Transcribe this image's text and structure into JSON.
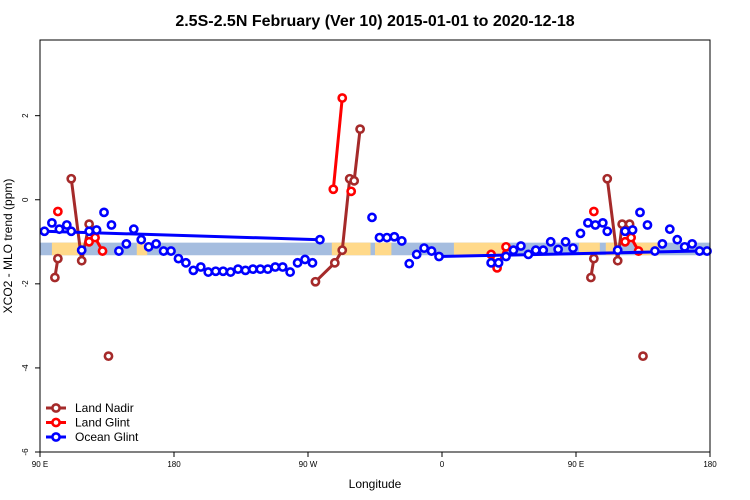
{
  "chart_data": {
    "type": "line",
    "title": "2.5S-2.5N February (Ver 10)   2015-01-01 to 2020-12-18",
    "xlabel": "Longitude",
    "ylabel": "XCO2 - MLO trend (ppm)",
    "xlim": [
      0,
      450
    ],
    "ylim": [
      -6,
      3.8
    ],
    "x_ticks": [
      {
        "value": 0,
        "label": "90 E"
      },
      {
        "value": 90,
        "label": "180"
      },
      {
        "value": 180,
        "label": "90 W"
      },
      {
        "value": 270,
        "label": "0"
      },
      {
        "value": 360,
        "label": "90 E"
      },
      {
        "value": 450,
        "label": "180"
      }
    ],
    "y_ticks": [
      {
        "value": -6,
        "label": "-6"
      },
      {
        "value": -4,
        "label": "-4"
      },
      {
        "value": -2,
        "label": "-2"
      },
      {
        "value": 0,
        "label": "0"
      },
      {
        "value": 2,
        "label": "2"
      }
    ],
    "colors": {
      "land_nadir": "#a52a2a",
      "land_glint": "#ff0000",
      "ocean_glint": "#0000ff",
      "band_ocean": "#a5bddf",
      "band_land": "#ffd98a"
    },
    "background_band": {
      "y_range": [
        -1.32,
        -1.02
      ],
      "land_segments": [
        [
          8,
          30
        ],
        [
          65,
          72
        ],
        [
          196,
          222
        ],
        [
          225,
          236
        ],
        [
          278,
          312
        ],
        [
          362,
          376
        ],
        [
          380,
          388
        ],
        [
          400,
          416
        ]
      ]
    },
    "series": [
      {
        "name": "Land Nadir",
        "color": "#a52a2a",
        "x": [
          10,
          12,
          21,
          28,
          33,
          46,
          185,
          198,
          203,
          208,
          211,
          215,
          370,
          372,
          381,
          388,
          391,
          396,
          405
        ],
        "y": [
          -1.85,
          -1.4,
          0.5,
          -1.45,
          -0.58,
          -3.72,
          -1.95,
          -1.5,
          -1.2,
          0.5,
          0.45,
          1.68,
          -1.85,
          -1.4,
          0.5,
          -1.45,
          -0.58,
          -0.58,
          -3.72
        ],
        "segments": [
          [
            0,
            1
          ],
          [
            2,
            3,
            4
          ],
          [
            6,
            7,
            8,
            9,
            10,
            11
          ],
          [
            12,
            13
          ],
          [
            14,
            15,
            16
          ]
        ]
      },
      {
        "name": "Land Glint",
        "color": "#ff0000",
        "x": [
          12,
          33,
          37,
          42,
          197,
          203,
          209,
          303,
          307,
          313,
          372,
          393,
          397,
          402
        ],
        "y": [
          -0.28,
          -1.0,
          -0.9,
          -1.22,
          0.25,
          2.42,
          0.2,
          -1.3,
          -1.62,
          -1.12,
          -0.28,
          -1.0,
          -0.9,
          -1.22
        ],
        "segments": [
          [
            1,
            2,
            3
          ],
          [
            4,
            5
          ],
          [
            7,
            8,
            9
          ],
          [
            11,
            12,
            13
          ]
        ]
      },
      {
        "name": "Ocean Glint",
        "color": "#0000ff",
        "x": [
          3,
          8,
          13,
          18,
          21,
          28,
          33,
          38,
          43,
          48,
          53,
          58,
          63,
          68,
          73,
          78,
          83,
          88,
          93,
          98,
          103,
          108,
          113,
          118,
          123,
          128,
          133,
          138,
          143,
          148,
          153,
          158,
          163,
          168,
          173,
          178,
          183,
          188,
          193,
          223,
          228,
          233,
          238,
          243,
          248,
          253,
          258,
          263,
          268,
          303,
          308,
          313,
          318,
          323,
          328,
          333,
          338,
          343,
          348,
          353,
          358,
          363,
          368,
          373,
          378,
          381,
          388,
          393,
          398,
          403,
          408,
          413,
          418,
          423,
          428,
          433,
          438,
          443,
          448
        ],
        "y": [
          -0.75,
          -0.55,
          -0.7,
          -0.6,
          -0.75,
          -1.2,
          -0.75,
          -0.72,
          -0.3,
          -0.6,
          -1.22,
          -1.05,
          -0.7,
          -0.95,
          -1.12,
          -1.05,
          -1.22,
          -1.22,
          -1.4,
          -1.5,
          -1.68,
          -1.6,
          -1.72,
          -1.7,
          -1.7,
          -1.72,
          -1.65,
          -1.68,
          -1.65,
          -1.65,
          -1.65,
          -1.6,
          -1.6,
          -1.72,
          -1.5,
          -1.42,
          -1.5,
          -0.95,
          null,
          -0.42,
          -0.9,
          -0.9,
          -0.88,
          -0.98,
          -1.52,
          -1.3,
          -1.15,
          -1.22,
          -1.35,
          -1.5,
          -1.5,
          -1.35,
          -1.2,
          -1.1,
          -1.3,
          -1.2,
          -1.2,
          -1.0,
          -1.18,
          -1.0,
          -1.15,
          -0.8,
          -0.55,
          -0.6,
          -0.55,
          -0.75,
          -1.2,
          -0.75,
          -0.72,
          -0.3,
          -0.6,
          -1.22,
          -1.05,
          -0.7,
          -0.95,
          -1.12,
          -1.05,
          -1.22,
          -1.22
        ],
        "segments": [
          [
            0,
            37
          ],
          [
            38,
            47
          ],
          [
            48,
            77
          ]
        ]
      }
    ],
    "legend": {
      "position": "bottom-left",
      "entries": [
        "Land Nadir",
        "Land Glint",
        "Ocean Glint"
      ]
    }
  }
}
